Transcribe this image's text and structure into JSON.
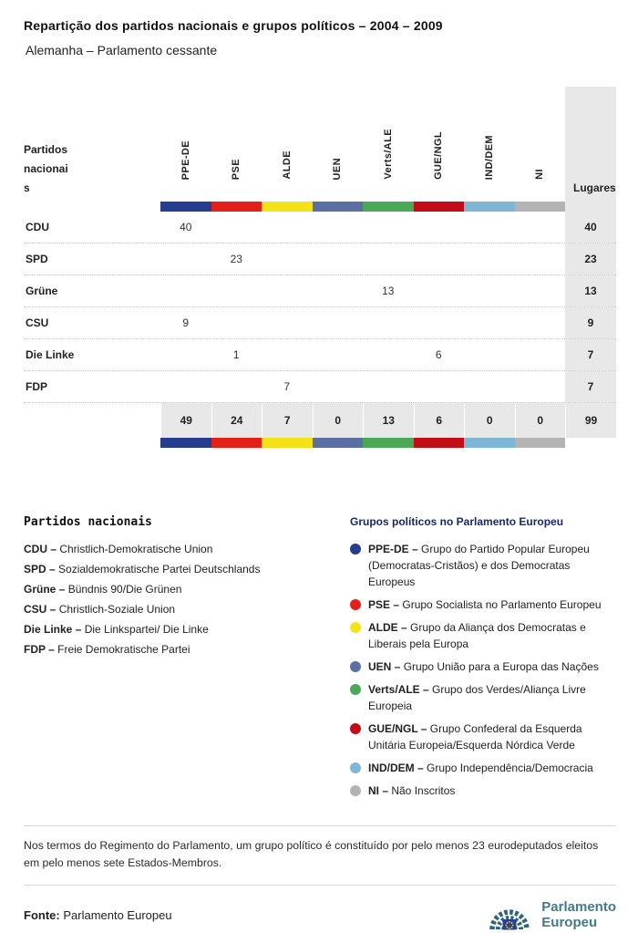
{
  "header": {
    "title": "Repartição dos partidos nacionais e grupos políticos – 2004 – 2009",
    "subtitle": "Alemanha – Parlamento cessante"
  },
  "groups": [
    {
      "id": "PPE-DE",
      "color": "#253c8f",
      "legend_label": "PPE-DE –",
      "description": "Grupo do Partido Popular Europeu (Democratas-Cristãos) e dos Democratas Europeus"
    },
    {
      "id": "PSE",
      "color": "#e32119",
      "legend_label": "PSE –",
      "description": "Grupo Socialista no Parlamento Europeu"
    },
    {
      "id": "ALDE",
      "color": "#f5e216",
      "legend_label": "ALDE –",
      "description": "Grupo da Aliança dos Democratas e Liberais pela Europa"
    },
    {
      "id": "UEN",
      "color": "#5b6fa5",
      "legend_label": "UEN –",
      "description": "Grupo União para a Europa das Nações"
    },
    {
      "id": "Verts/ALE",
      "color": "#4aa857",
      "legend_label": "Verts/ALE –",
      "description": "Grupo dos Verdes/Aliança Livre Europeia"
    },
    {
      "id": "GUE/NGL",
      "color": "#c00d16",
      "legend_label": "GUE/NGL –",
      "description": "Grupo Confederal da Esquerda Unitária Europeia/Esquerda Nórdica Verde"
    },
    {
      "id": "IND/DEM",
      "color": "#7fb5d5",
      "legend_label": "IND/DEM –",
      "description": "Grupo Independência/Democracia"
    },
    {
      "id": "NI",
      "color": "#b4b4b4",
      "legend_label": "NI –",
      "description": "Não Inscritos"
    }
  ],
  "table": {
    "corner_label": "Partidos nacionais",
    "seats_label": "Lugares",
    "rows": [
      {
        "party": "CDU",
        "values": [
          "40",
          "",
          "",
          "",
          "",
          "",
          "",
          ""
        ],
        "seats": "40"
      },
      {
        "party": "SPD",
        "values": [
          "",
          "23",
          "",
          "",
          "",
          "",
          "",
          ""
        ],
        "seats": "23"
      },
      {
        "party": "Grüne",
        "values": [
          "",
          "",
          "",
          "",
          "13",
          "",
          "",
          ""
        ],
        "seats": "13"
      },
      {
        "party": "CSU",
        "values": [
          "9",
          "",
          "",
          "",
          "",
          "",
          "",
          ""
        ],
        "seats": "9"
      },
      {
        "party": "Die Linke",
        "values": [
          "",
          "1",
          "",
          "",
          "",
          "6",
          "",
          ""
        ],
        "seats": "7"
      },
      {
        "party": "FDP",
        "values": [
          "",
          "",
          "7",
          "",
          "",
          "",
          "",
          ""
        ],
        "seats": "7"
      }
    ],
    "totals": {
      "values": [
        "49",
        "24",
        "7",
        "0",
        "13",
        "6",
        "0",
        "0"
      ],
      "seats": "99"
    }
  },
  "legend": {
    "parties_title": "Partidos nacionais",
    "groups_title": "Grupos políticos no Parlamento Europeu",
    "parties": [
      {
        "label": "CDU –",
        "name": "Christlich-Demokratische Union"
      },
      {
        "label": "SPD –",
        "name": "Sozialdemokratische Partei Deutschlands"
      },
      {
        "label": "Grüne –",
        "name": "Bündnis 90/Die Grünen"
      },
      {
        "label": "CSU –",
        "name": "Christlich-Soziale Union"
      },
      {
        "label": "Die Linke –",
        "name": "Die Linkspartei/ Die Linke"
      },
      {
        "label": "FDP –",
        "name": "Freie Demokratische Partei"
      }
    ]
  },
  "note": "Nos termos do Regimento do Parlamento, um grupo político é constituído por pelo menos 23 eurodeputados eleitos em pelo menos sete Estados-Membros.",
  "footer": {
    "source_label": "Fonte:",
    "source_value": "Parlamento Europeu",
    "logo_line1": "Parlamento",
    "logo_line2": "Europeu",
    "logo_color": "#44798c"
  }
}
